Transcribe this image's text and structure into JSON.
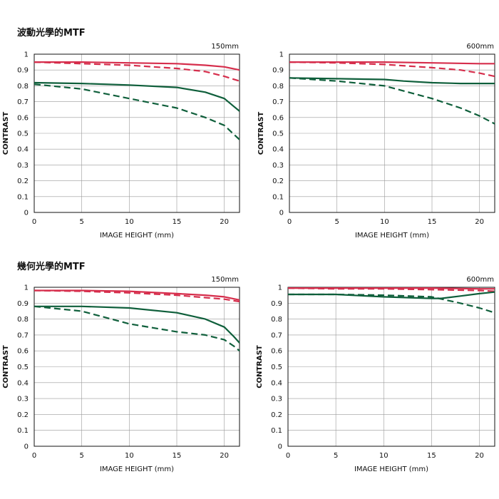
{
  "sections": [
    {
      "title": "波動光學的MTF"
    },
    {
      "title": "幾何光學的MTF"
    }
  ],
  "colors": {
    "red": "#d62e4c",
    "green": "#0f5f3b",
    "grid": "#999999",
    "axis": "#111111"
  },
  "chart_data": [
    {
      "type": "line",
      "section": 0,
      "label": "150mm",
      "xlabel": "IMAGE HEIGHT (mm)",
      "ylabel": "CONTRAST",
      "xlim": [
        0,
        21.6
      ],
      "ylim": [
        0,
        1
      ],
      "xticks": [
        0,
        5,
        10,
        15,
        20
      ],
      "yticks": [
        0,
        0.1,
        0.2,
        0.3,
        0.4,
        0.5,
        0.6,
        0.7,
        0.8,
        0.9,
        1
      ],
      "ytick_labels": [
        "0",
        "0.1",
        "0.2",
        "0.3",
        "0.4",
        "0.5",
        "0.6",
        "0.7",
        "0.8",
        "0.9",
        "1"
      ],
      "grid": true,
      "series": [
        {
          "color": "red",
          "dash": false,
          "x": [
            0,
            5,
            10,
            15,
            18,
            20,
            21.6
          ],
          "y": [
            0.95,
            0.95,
            0.945,
            0.94,
            0.93,
            0.92,
            0.9
          ]
        },
        {
          "color": "red",
          "dash": true,
          "x": [
            0,
            5,
            10,
            15,
            18,
            20,
            21.6
          ],
          "y": [
            0.95,
            0.94,
            0.93,
            0.91,
            0.89,
            0.86,
            0.83
          ]
        },
        {
          "color": "green",
          "dash": false,
          "x": [
            0,
            5,
            10,
            15,
            18,
            20,
            21,
            21.6
          ],
          "y": [
            0.82,
            0.815,
            0.805,
            0.79,
            0.76,
            0.72,
            0.67,
            0.64
          ]
        },
        {
          "color": "green",
          "dash": true,
          "x": [
            0,
            5,
            10,
            15,
            18,
            20,
            21.6
          ],
          "y": [
            0.81,
            0.78,
            0.72,
            0.66,
            0.6,
            0.55,
            0.46
          ]
        }
      ]
    },
    {
      "type": "line",
      "section": 0,
      "label": "600mm",
      "xlabel": "IMAGE HEIGHT (mm)",
      "ylabel": "CONTRAST",
      "xlim": [
        0,
        21.6
      ],
      "ylim": [
        0,
        1
      ],
      "xticks": [
        0,
        5,
        10,
        15,
        20
      ],
      "yticks": [
        0,
        0.1,
        0.2,
        0.3,
        0.4,
        0.5,
        0.6,
        0.7,
        0.8,
        0.9,
        1
      ],
      "ytick_labels": [
        "0",
        "0.1",
        "0.2",
        "0.3",
        "0.4",
        "0.5",
        "0.6",
        "0.7",
        "0.8",
        "0.9",
        "1"
      ],
      "grid": true,
      "series": [
        {
          "color": "red",
          "dash": false,
          "x": [
            0,
            5,
            10,
            15,
            20,
            21.6
          ],
          "y": [
            0.95,
            0.95,
            0.95,
            0.945,
            0.94,
            0.94
          ]
        },
        {
          "color": "red",
          "dash": true,
          "x": [
            0,
            5,
            10,
            15,
            18,
            20,
            21.6
          ],
          "y": [
            0.95,
            0.945,
            0.935,
            0.915,
            0.9,
            0.88,
            0.86
          ]
        },
        {
          "color": "green",
          "dash": false,
          "x": [
            0,
            5,
            10,
            12,
            15,
            18,
            20,
            21.6
          ],
          "y": [
            0.85,
            0.845,
            0.84,
            0.83,
            0.82,
            0.815,
            0.815,
            0.815
          ]
        },
        {
          "color": "green",
          "dash": true,
          "x": [
            0,
            5,
            10,
            15,
            18,
            20,
            21.6
          ],
          "y": [
            0.85,
            0.83,
            0.8,
            0.72,
            0.66,
            0.61,
            0.56
          ]
        }
      ]
    },
    {
      "type": "line",
      "section": 1,
      "label": "150mm",
      "xlabel": "IMAGE HEIGHT (mm)",
      "ylabel": "CONTRAST",
      "xlim": [
        0,
        21.6
      ],
      "ylim": [
        0,
        1
      ],
      "xticks": [
        0,
        5,
        10,
        15,
        20
      ],
      "yticks": [
        0,
        0.1,
        0.2,
        0.3,
        0.4,
        0.5,
        0.6,
        0.7,
        0.8,
        0.9,
        1
      ],
      "ytick_labels": [
        "0",
        "0.1",
        "0.2",
        "0.3",
        "0.4",
        "0.5",
        "0.6",
        "0.7",
        "0.8",
        "0.9",
        "1"
      ],
      "grid": true,
      "series": [
        {
          "color": "red",
          "dash": false,
          "x": [
            0,
            5,
            10,
            15,
            18,
            20,
            21.6
          ],
          "y": [
            0.98,
            0.98,
            0.975,
            0.96,
            0.95,
            0.94,
            0.92
          ]
        },
        {
          "color": "red",
          "dash": true,
          "x": [
            0,
            5,
            10,
            15,
            18,
            20,
            21.6
          ],
          "y": [
            0.98,
            0.975,
            0.965,
            0.95,
            0.935,
            0.925,
            0.91
          ]
        },
        {
          "color": "green",
          "dash": false,
          "x": [
            0,
            5,
            10,
            15,
            18,
            20,
            21,
            21.6
          ],
          "y": [
            0.88,
            0.88,
            0.87,
            0.84,
            0.8,
            0.75,
            0.69,
            0.65
          ]
        },
        {
          "color": "green",
          "dash": true,
          "x": [
            0,
            5,
            10,
            15,
            18,
            20,
            21,
            21.6
          ],
          "y": [
            0.88,
            0.85,
            0.77,
            0.72,
            0.7,
            0.67,
            0.63,
            0.6
          ]
        }
      ]
    },
    {
      "type": "line",
      "section": 1,
      "label": "600mm",
      "xlabel": "IMAGE HEIGHT (mm)",
      "ylabel": "CONTRAST",
      "xlim": [
        0,
        21.6
      ],
      "ylim": [
        0,
        1
      ],
      "xticks": [
        0,
        5,
        10,
        15,
        20
      ],
      "yticks": [
        0,
        0.1,
        0.2,
        0.3,
        0.4,
        0.5,
        0.6,
        0.7,
        0.8,
        0.9,
        1
      ],
      "ytick_labels": [
        "0",
        "0.1",
        "0.2",
        "0.3",
        "0.4",
        "0.5",
        "0.6",
        "0.7",
        "0.8",
        "0.9",
        "1"
      ],
      "grid": true,
      "series": [
        {
          "color": "red",
          "dash": false,
          "x": [
            0,
            5,
            10,
            15,
            20,
            21.6
          ],
          "y": [
            0.995,
            0.995,
            0.995,
            0.995,
            0.99,
            0.99
          ]
        },
        {
          "color": "red",
          "dash": true,
          "x": [
            0,
            5,
            10,
            15,
            20,
            21.6
          ],
          "y": [
            0.995,
            0.99,
            0.99,
            0.985,
            0.98,
            0.975
          ]
        },
        {
          "color": "green",
          "dash": false,
          "x": [
            0,
            5,
            10,
            15,
            16,
            18,
            20,
            21.6
          ],
          "y": [
            0.955,
            0.955,
            0.94,
            0.93,
            0.93,
            0.945,
            0.96,
            0.97
          ]
        },
        {
          "color": "green",
          "dash": true,
          "x": [
            0,
            5,
            10,
            15,
            18,
            20,
            21.6
          ],
          "y": [
            0.955,
            0.955,
            0.95,
            0.94,
            0.9,
            0.87,
            0.84
          ]
        }
      ]
    }
  ]
}
